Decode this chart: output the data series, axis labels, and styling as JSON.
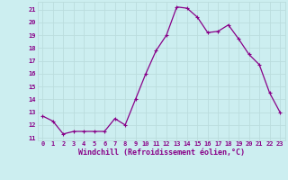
{
  "x": [
    0,
    1,
    2,
    3,
    4,
    5,
    6,
    7,
    8,
    9,
    10,
    11,
    12,
    13,
    14,
    15,
    16,
    17,
    18,
    19,
    20,
    21,
    22,
    23
  ],
  "y": [
    12.7,
    12.3,
    11.3,
    11.5,
    11.5,
    11.5,
    11.5,
    12.5,
    12.0,
    14.0,
    16.0,
    17.8,
    19.0,
    21.2,
    21.1,
    20.4,
    19.2,
    19.3,
    19.8,
    18.7,
    17.5,
    16.7,
    14.5,
    13.0
  ],
  "line_color": "#880088",
  "marker": "P",
  "marker_size": 2.5,
  "bg_color": "#cceef0",
  "grid_color": "#bbdddd",
  "xlabel": "Windchill (Refroidissement éolien,°C)",
  "ylabel_ticks": [
    11,
    12,
    13,
    14,
    15,
    16,
    17,
    18,
    19,
    20,
    21
  ],
  "xlim": [
    -0.5,
    23.5
  ],
  "ylim": [
    10.8,
    21.6
  ],
  "tick_color": "#880088",
  "label_color": "#880088",
  "tick_fontsize": 5.0,
  "xlabel_fontsize": 6.0
}
